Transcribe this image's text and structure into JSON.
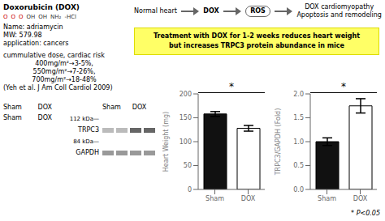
{
  "chart_data": [
    {
      "type": "bar",
      "categories": [
        "Sham",
        "DOX"
      ],
      "values": [
        158,
        128
      ],
      "errors": [
        5,
        6
      ],
      "colors": [
        "#111111",
        "#ffffff"
      ],
      "ylabel": "Heart Weight (mg)",
      "ylim": [
        0,
        200
      ],
      "yticks": [
        0,
        50,
        100,
        150,
        200
      ],
      "annotations": [
        "*"
      ]
    },
    {
      "type": "bar",
      "categories": [
        "Sham",
        "DOX"
      ],
      "values": [
        1.0,
        1.75
      ],
      "errors": [
        0.08,
        0.15
      ],
      "colors": [
        "#111111",
        "#ffffff"
      ],
      "ylabel": "TRPC3/GAPDH (Fold)",
      "ylim": [
        0,
        2.0
      ],
      "yticks": [
        {
          "value": 0,
          "label": "0.0"
        },
        0.5,
        {
          "value": 1.0,
          "label": "1.0"
        },
        1.5,
        {
          "value": 2.0,
          "label": "2.0"
        }
      ],
      "annotations": [
        "*"
      ]
    }
  ],
  "annotations": [
    "Doxorubicin (DOX)",
    "O",
    "O",
    "O",
    "OH",
    "OH",
    "NH₂",
    "-HCl",
    "Name: adriamycin",
    "MW: 579.98",
    "application: cancers",
    "cummulative dose, cardiac risk",
    "400mg/m²→3-5%,",
    "550mg/m²→7-26%,",
    "700mg/m²→18-48%",
    "(Yeh et al. J Am Coll Cardiol 2009)",
    "Normal heart",
    "DOX",
    "ROS",
    "DOX cardiomyopathy",
    "Apoptosis and remodeling",
    "Treatment with DOX for 1-2 weeks reduces heart weight\nbut increases TRPC3 protein abundance in mice",
    "Sham",
    "DOX",
    "Sham",
    "DOX",
    "Sham",
    "DOX",
    "112 kDa—",
    "TRPC3",
    "84 kDa—",
    "GAPDH",
    "* P<0.05"
  ]
}
